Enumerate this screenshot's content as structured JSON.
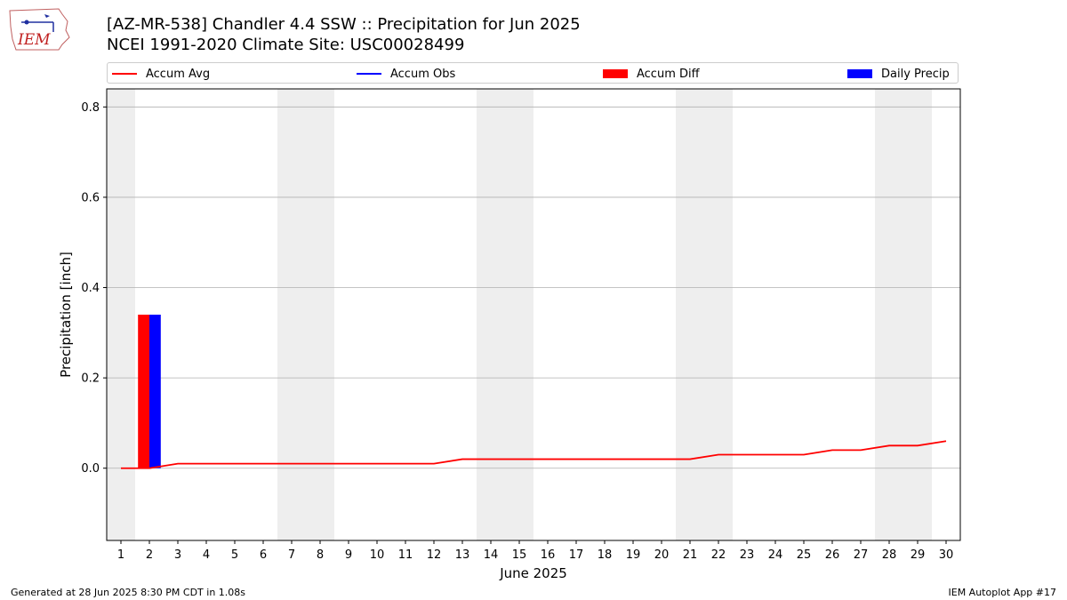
{
  "header": {
    "title_line1": "[AZ-MR-538] Chandler 4.4 SSW :: Precipitation for Jun 2025",
    "title_line2": "NCEI 1991-2020 Climate Site: USC00028499",
    "logo_text": "IEM"
  },
  "legend": {
    "accum_avg": "Accum Avg",
    "accum_obs": "Accum Obs",
    "accum_diff": "Accum Diff",
    "daily_precip": "Daily Precip"
  },
  "footer": {
    "generated": "Generated at 28 Jun 2025 8:30 PM CDT in 1.08s",
    "app": "IEM Autoplot App #17"
  },
  "colors": {
    "accum_avg": "#ff0000",
    "accum_obs": "#0000ff",
    "accum_diff": "#ff0000",
    "daily_precip": "#0000ff",
    "weekend_shade": "#eeeeee",
    "grid": "#b0b0b0"
  },
  "chart_data": {
    "type": "bar",
    "xlabel": "June 2025",
    "ylabel": "Precipitation [inch]",
    "x": [
      1,
      2,
      3,
      4,
      5,
      6,
      7,
      8,
      9,
      10,
      11,
      12,
      13,
      14,
      15,
      16,
      17,
      18,
      19,
      20,
      21,
      22,
      23,
      24,
      25,
      26,
      27,
      28,
      29,
      30
    ],
    "xlim": [
      0.5,
      30.5
    ],
    "ylim": [
      -0.16,
      0.84
    ],
    "yticks": [
      0.0,
      0.2,
      0.4,
      0.6,
      0.8
    ],
    "ytick_labels": [
      "0.0",
      "0.2",
      "0.4",
      "0.6",
      "0.8"
    ],
    "grid": "y",
    "legend_position": "top",
    "shaded_weekend_days": [
      1,
      7,
      8,
      14,
      15,
      21,
      22,
      28,
      29
    ],
    "series": [
      {
        "name": "Accum Avg",
        "kind": "line",
        "x": [
          1,
          2,
          3,
          4,
          5,
          6,
          7,
          8,
          9,
          10,
          11,
          12,
          13,
          14,
          15,
          16,
          17,
          18,
          19,
          20,
          21,
          22,
          23,
          24,
          25,
          26,
          27,
          28,
          29,
          30
        ],
        "values": [
          0.0,
          0.0,
          0.01,
          0.01,
          0.01,
          0.01,
          0.01,
          0.01,
          0.01,
          0.01,
          0.01,
          0.01,
          0.02,
          0.02,
          0.02,
          0.02,
          0.02,
          0.02,
          0.02,
          0.02,
          0.02,
          0.03,
          0.03,
          0.03,
          0.03,
          0.04,
          0.04,
          0.05,
          0.05,
          0.06
        ]
      },
      {
        "name": "Accum Diff",
        "kind": "bar",
        "x": [
          2
        ],
        "values": [
          0.34
        ]
      },
      {
        "name": "Daily Precip",
        "kind": "bar",
        "x": [
          2
        ],
        "values": [
          0.34
        ]
      }
    ]
  }
}
